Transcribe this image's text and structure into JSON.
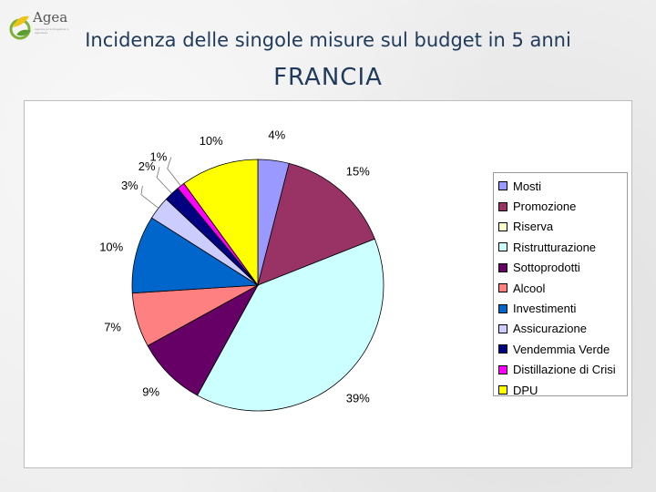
{
  "brand": {
    "name": "Agea",
    "tagline": "Agenzia per le Erogazioni in Agricoltura"
  },
  "header": {
    "title": "Incidenza delle singole misure sul budget in 5 anni",
    "subtitle": "FRANCIA"
  },
  "chart_data": {
    "type": "pie",
    "title": "",
    "categories": [
      "Mosti",
      "Promozione",
      "Riserva",
      "Ristrutturazione",
      "Sottoprodotti",
      "Alcool",
      "Investimenti",
      "Assicurazione",
      "Vendemmia Verde",
      "Distillazione di Crisi",
      "DPU"
    ],
    "values": [
      4,
      15,
      0,
      39,
      9,
      7,
      10,
      3,
      2,
      1,
      10
    ],
    "labels": [
      "4%",
      "15%",
      "",
      "39%",
      "9%",
      "7%",
      "10%",
      "3%",
      "2%",
      "1%",
      "10%"
    ],
    "colors": [
      "#9999ff",
      "#993366",
      "#ffffcc",
      "#ccffff",
      "#660066",
      "#ff8080",
      "#0066cc",
      "#ccccff",
      "#000080",
      "#ff00ff",
      "#ffff00"
    ],
    "legend_position": "right",
    "start_angle_deg": 0,
    "direction": "clockwise"
  }
}
